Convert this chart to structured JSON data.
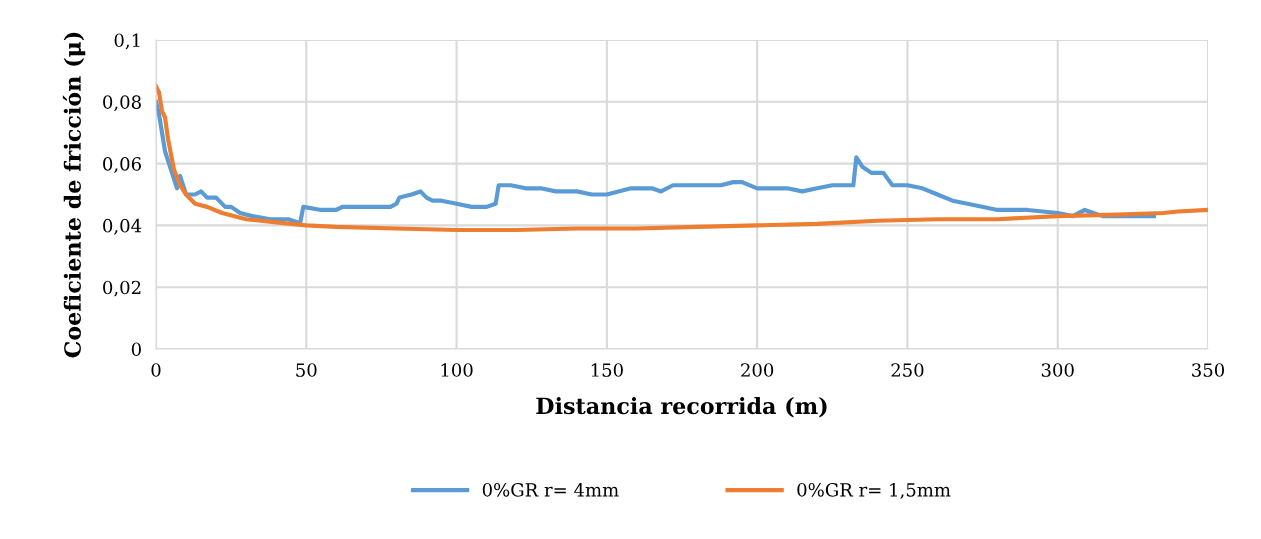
{
  "chart_data": {
    "type": "line",
    "xlabel": "Distancia recorrida (m)",
    "ylabel": "Coeficiente de fricción (μ)",
    "xlim": [
      0,
      350
    ],
    "xticks": [
      0,
      50,
      100,
      150,
      200,
      250,
      300,
      350
    ],
    "ylim": [
      0,
      0.1
    ],
    "yticks": [
      {
        "value": 0,
        "label": "0"
      },
      {
        "value": 0.02,
        "label": "0,02"
      },
      {
        "value": 0.04,
        "label": "0,04"
      },
      {
        "value": 0.06,
        "label": "0,06"
      },
      {
        "value": 0.08,
        "label": "0,08"
      },
      {
        "value": 0.1,
        "label": "0,1"
      }
    ],
    "grid": true,
    "legend": "bottom",
    "marker": "none",
    "line_style": "solid",
    "series": [
      {
        "name": "0%GR r= 4mm",
        "color": "#5b9bd5",
        "x": [
          0,
          1,
          2,
          3,
          5,
          7,
          8,
          9,
          10,
          13,
          15,
          17,
          20,
          23,
          25,
          28,
          32,
          38,
          44,
          47,
          48,
          49,
          55,
          60,
          62,
          70,
          78,
          80,
          81,
          85,
          88,
          90,
          92,
          95,
          100,
          105,
          110,
          113,
          114,
          118,
          123,
          128,
          133,
          140,
          145,
          150,
          158,
          165,
          168,
          172,
          180,
          185,
          188,
          192,
          195,
          200,
          205,
          210,
          215,
          220,
          225,
          228,
          232,
          233,
          235,
          238,
          242,
          245,
          250,
          255,
          260,
          265,
          270,
          280,
          290,
          300,
          305,
          309,
          315,
          325,
          332
        ],
        "values": [
          0.08,
          0.076,
          0.07,
          0.064,
          0.058,
          0.052,
          0.056,
          0.053,
          0.05,
          0.05,
          0.051,
          0.049,
          0.049,
          0.046,
          0.046,
          0.044,
          0.043,
          0.042,
          0.042,
          0.041,
          0.041,
          0.046,
          0.045,
          0.045,
          0.046,
          0.046,
          0.046,
          0.047,
          0.049,
          0.05,
          0.051,
          0.049,
          0.048,
          0.048,
          0.047,
          0.046,
          0.046,
          0.047,
          0.053,
          0.053,
          0.052,
          0.052,
          0.051,
          0.051,
          0.05,
          0.05,
          0.052,
          0.052,
          0.051,
          0.053,
          0.053,
          0.053,
          0.053,
          0.054,
          0.054,
          0.052,
          0.052,
          0.052,
          0.051,
          0.052,
          0.053,
          0.053,
          0.053,
          0.062,
          0.059,
          0.057,
          0.057,
          0.053,
          0.053,
          0.052,
          0.05,
          0.048,
          0.047,
          0.045,
          0.045,
          0.044,
          0.043,
          0.045,
          0.043,
          0.043,
          0.043
        ]
      },
      {
        "name": "0%GR r= 1,5mm",
        "color": "#ed7d31",
        "x": [
          0,
          1,
          2,
          3,
          4,
          6,
          8,
          10,
          13,
          17,
          22,
          30,
          40,
          50,
          60,
          80,
          100,
          120,
          140,
          160,
          180,
          200,
          220,
          240,
          260,
          280,
          300,
          320,
          335,
          340,
          350
        ],
        "values": [
          0.085,
          0.083,
          0.077,
          0.075,
          0.068,
          0.058,
          0.053,
          0.05,
          0.047,
          0.046,
          0.044,
          0.042,
          0.041,
          0.04,
          0.0395,
          0.039,
          0.0385,
          0.0385,
          0.039,
          0.039,
          0.0395,
          0.04,
          0.0405,
          0.0415,
          0.042,
          0.042,
          0.043,
          0.0435,
          0.044,
          0.0445,
          0.045
        ]
      }
    ]
  }
}
